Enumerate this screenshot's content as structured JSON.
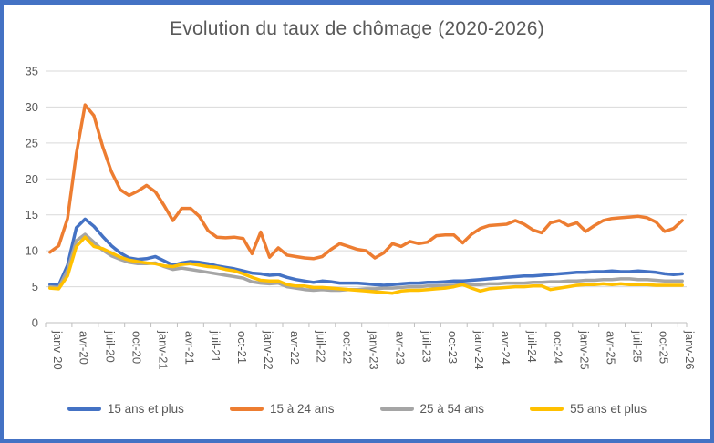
{
  "window": {
    "border_color": "#4472C4",
    "background": "#ffffff"
  },
  "chart_data": {
    "type": "line",
    "title": "Evolution du taux de chômage (2020-2026)",
    "xlabel": "",
    "ylabel": "",
    "ylim": [
      0,
      35
    ],
    "y_ticks": [
      0,
      5,
      10,
      15,
      20,
      25,
      30,
      35
    ],
    "grid": "horizontal",
    "grid_color": "#D9D9D9",
    "axis_color": "#BFBFBF",
    "label_color": "#595959",
    "legend_position": "bottom",
    "x_unit": "month",
    "x_start": "janv-20",
    "x_end": "janv-26",
    "x_tick_labels": [
      "janv-20",
      "avr-20",
      "juil-20",
      "oct-20",
      "janv-21",
      "avr-21",
      "juil-21",
      "oct-21",
      "janv-22",
      "avr-22",
      "juil-22",
      "oct-22",
      "janv-23",
      "avr-23",
      "juil-23",
      "oct-23",
      "janv-24",
      "avr-24",
      "juil-24",
      "oct-24",
      "janv-25",
      "avr-25",
      "juil-25",
      "oct-25",
      "janv-26"
    ],
    "series": [
      {
        "name": "15 ans et plus",
        "color": "#4472C4",
        "values": [
          5.3,
          5.2,
          8.0,
          13.2,
          14.4,
          13.4,
          12.0,
          10.7,
          9.7,
          9.0,
          8.8,
          8.9,
          9.2,
          8.6,
          8.0,
          8.3,
          8.5,
          8.4,
          8.2,
          7.9,
          7.7,
          7.5,
          7.2,
          6.9,
          6.8,
          6.6,
          6.7,
          6.3,
          6.0,
          5.8,
          5.6,
          5.8,
          5.7,
          5.5,
          5.5,
          5.5,
          5.4,
          5.3,
          5.2,
          5.3,
          5.4,
          5.5,
          5.5,
          5.6,
          5.6,
          5.7,
          5.8,
          5.8,
          5.9,
          6.0,
          6.1,
          6.2,
          6.3,
          6.4,
          6.5,
          6.5,
          6.6,
          6.7,
          6.8,
          6.9,
          7.0,
          7.0,
          7.1,
          7.1,
          7.2,
          7.1,
          7.1,
          7.2,
          7.1,
          7.0,
          6.8,
          6.7,
          6.8
        ]
      },
      {
        "name": "15 à 24 ans",
        "color": "#ED7D31",
        "values": [
          9.8,
          10.7,
          14.5,
          23.5,
          30.3,
          28.8,
          24.5,
          21.0,
          18.5,
          17.7,
          18.3,
          19.1,
          18.2,
          16.3,
          14.2,
          15.9,
          15.9,
          14.8,
          12.8,
          11.9,
          11.8,
          11.9,
          11.7,
          9.6,
          12.6,
          9.1,
          10.4,
          9.4,
          9.2,
          9.0,
          8.9,
          9.2,
          10.2,
          11.0,
          10.6,
          10.2,
          10.0,
          9.0,
          9.7,
          11.0,
          10.6,
          11.3,
          11.0,
          11.2,
          12.1,
          12.2,
          12.2,
          11.1,
          12.3,
          13.1,
          13.5,
          13.6,
          13.7,
          14.2,
          13.7,
          12.9,
          12.5,
          13.9,
          14.2,
          13.5,
          13.9,
          12.7,
          13.5,
          14.2,
          14.5,
          14.6,
          14.7,
          14.8,
          14.6,
          14.0,
          12.7,
          13.1,
          14.2
        ]
      },
      {
        "name": "25 à 54 ans",
        "color": "#A5A5A5",
        "values": [
          5.0,
          4.9,
          7.3,
          11.4,
          12.3,
          11.2,
          10.1,
          9.3,
          8.8,
          8.4,
          8.2,
          8.2,
          8.3,
          7.8,
          7.4,
          7.6,
          7.4,
          7.2,
          7.0,
          6.8,
          6.6,
          6.4,
          6.2,
          5.7,
          5.5,
          5.4,
          5.5,
          5.0,
          4.8,
          4.6,
          4.5,
          4.6,
          4.5,
          4.5,
          4.6,
          4.6,
          4.7,
          4.7,
          4.8,
          4.8,
          4.9,
          5.0,
          5.0,
          5.1,
          5.1,
          5.2,
          5.2,
          5.3,
          5.3,
          5.3,
          5.4,
          5.4,
          5.5,
          5.5,
          5.5,
          5.6,
          5.6,
          5.7,
          5.7,
          5.8,
          5.8,
          5.9,
          5.9,
          6.0,
          6.0,
          6.1,
          6.1,
          6.0,
          6.0,
          5.9,
          5.8,
          5.8,
          5.8
        ]
      },
      {
        "name": "55 ans et plus",
        "color": "#FFC000",
        "values": [
          4.8,
          4.7,
          6.5,
          10.6,
          11.9,
          10.6,
          10.3,
          9.7,
          9.1,
          8.7,
          8.5,
          8.3,
          8.2,
          7.9,
          7.8,
          8.1,
          8.2,
          8.0,
          7.8,
          7.7,
          7.4,
          7.2,
          6.8,
          6.3,
          5.9,
          5.8,
          5.8,
          5.3,
          5.1,
          5.1,
          4.9,
          4.9,
          4.8,
          4.7,
          4.6,
          4.5,
          4.4,
          4.3,
          4.2,
          4.1,
          4.4,
          4.5,
          4.5,
          4.6,
          4.7,
          4.8,
          5.0,
          5.3,
          4.8,
          4.4,
          4.7,
          4.8,
          4.9,
          5.0,
          5.0,
          5.1,
          5.1,
          4.6,
          4.8,
          5.0,
          5.2,
          5.3,
          5.3,
          5.4,
          5.3,
          5.4,
          5.3,
          5.3,
          5.3,
          5.2,
          5.2,
          5.2,
          5.2
        ]
      }
    ]
  }
}
